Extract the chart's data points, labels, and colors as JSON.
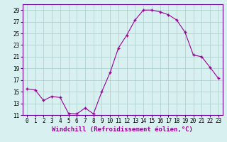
{
  "x": [
    0,
    1,
    2,
    3,
    4,
    5,
    6,
    7,
    8,
    9,
    10,
    11,
    12,
    13,
    14,
    15,
    16,
    17,
    18,
    19,
    20,
    21,
    22,
    23
  ],
  "y": [
    15.5,
    15.3,
    13.5,
    14.2,
    14.0,
    11.3,
    11.2,
    12.2,
    11.2,
    15.0,
    18.3,
    22.5,
    24.7,
    27.3,
    29.0,
    29.0,
    28.7,
    28.2,
    27.3,
    25.2,
    21.3,
    21.0,
    19.2,
    17.3
  ],
  "line_color": "#990099",
  "marker": "+",
  "marker_size": 3,
  "background_color": "#d8f0f0",
  "grid_color": "#aacccc",
  "xlabel": "Windchill (Refroidissement éolien,°C)",
  "ylim": [
    11,
    30
  ],
  "xlim": [
    -0.5,
    23.5
  ],
  "yticks": [
    11,
    13,
    15,
    17,
    19,
    21,
    23,
    25,
    27,
    29
  ],
  "xticks": [
    0,
    1,
    2,
    3,
    4,
    5,
    6,
    7,
    8,
    9,
    10,
    11,
    12,
    13,
    14,
    15,
    16,
    17,
    18,
    19,
    20,
    21,
    22,
    23
  ],
  "tick_fontsize": 5.5,
  "xlabel_fontsize": 6.5,
  "line_color_border": "#660099"
}
